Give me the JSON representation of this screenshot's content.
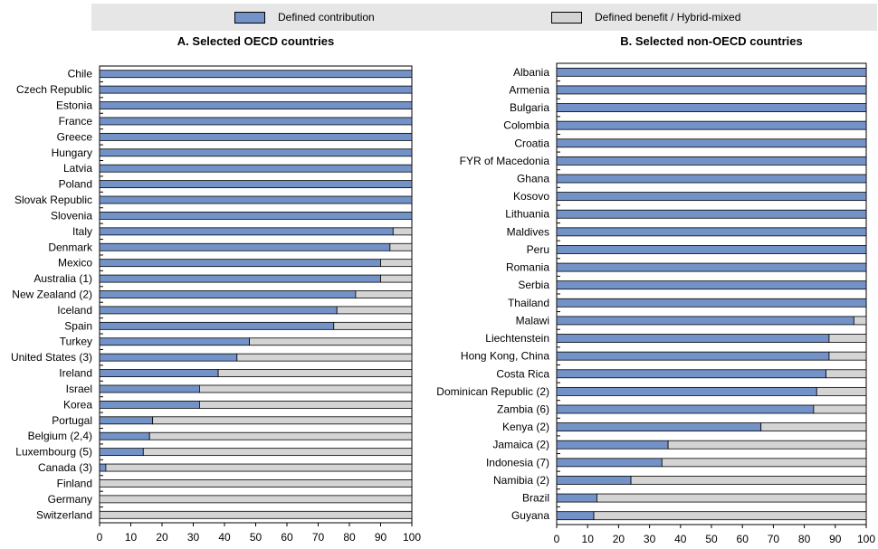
{
  "legend": {
    "dc_label": "Defined contribution",
    "db_label": "Defined benefit / Hybrid-mixed"
  },
  "colors": {
    "dc": "#7393c8",
    "db": "#d4d4d4",
    "border": "#000000"
  },
  "chart_data": [
    {
      "type": "bar",
      "orientation": "horizontal",
      "stacked": true,
      "title": "A. Selected OECD countries",
      "xlim": [
        0,
        100
      ],
      "xticks": [
        "0",
        "10",
        "20",
        "30",
        "40",
        "50",
        "60",
        "70",
        "80",
        "90",
        "100"
      ],
      "categories": [
        "Chile",
        "Czech Republic",
        "Estonia",
        "France",
        "Greece",
        "Hungary",
        "Latvia",
        "Poland",
        "Slovak Republic",
        "Slovenia",
        "Italy",
        "Denmark",
        "Mexico",
        "Australia (1)",
        "New Zealand (2)",
        "Iceland",
        "Spain",
        "Turkey",
        "United States (3)",
        "Ireland",
        "Israel",
        "Korea",
        "Portugal",
        "Belgium (2,4)",
        "Luxembourg (5)",
        "Canada (3)",
        "Finland",
        "Germany",
        "Switzerland"
      ],
      "series": [
        {
          "name": "Defined contribution",
          "values": [
            100,
            100,
            100,
            100,
            100,
            100,
            100,
            100,
            100,
            100,
            94,
            93,
            90,
            90,
            82,
            76,
            75,
            48,
            44,
            38,
            32,
            32,
            17,
            16,
            14,
            2,
            0,
            0,
            0
          ]
        },
        {
          "name": "Defined benefit / Hybrid-mixed",
          "values": [
            0,
            0,
            0,
            0,
            0,
            0,
            0,
            0,
            0,
            0,
            6,
            7,
            10,
            10,
            18,
            24,
            25,
            52,
            56,
            62,
            68,
            68,
            83,
            84,
            86,
            98,
            100,
            100,
            100
          ]
        }
      ]
    },
    {
      "type": "bar",
      "orientation": "horizontal",
      "stacked": true,
      "title": "B. Selected non-OECD countries",
      "xlim": [
        0,
        100
      ],
      "xticks": [
        "0",
        "10",
        "20",
        "30",
        "40",
        "50",
        "60",
        "70",
        "80",
        "90",
        "100"
      ],
      "categories": [
        "Albania",
        "Armenia",
        "Bulgaria",
        "Colombia",
        "Croatia",
        "FYR of Macedonia",
        "Ghana",
        "Kosovo",
        "Lithuania",
        "Maldives",
        "Peru",
        "Romania",
        "Serbia",
        "Thailand",
        "Malawi",
        "Liechtenstein",
        "Hong Kong, China",
        "Costa Rica",
        "Dominican Republic (2)",
        "Zambia (6)",
        "Kenya (2)",
        "Jamaica (2)",
        "Indonesia (7)",
        "Namibia (2)",
        "Brazil",
        "Guyana"
      ],
      "series": [
        {
          "name": "Defined contribution",
          "values": [
            100,
            100,
            100,
            100,
            100,
            100,
            100,
            100,
            100,
            100,
            100,
            100,
            100,
            100,
            96,
            88,
            88,
            87,
            84,
            83,
            66,
            36,
            34,
            24,
            13,
            12
          ]
        },
        {
          "name": "Defined benefit / Hybrid-mixed",
          "values": [
            0,
            0,
            0,
            0,
            0,
            0,
            0,
            0,
            0,
            0,
            0,
            0,
            0,
            0,
            4,
            12,
            12,
            13,
            16,
            17,
            34,
            64,
            66,
            76,
            87,
            88
          ]
        }
      ]
    }
  ]
}
